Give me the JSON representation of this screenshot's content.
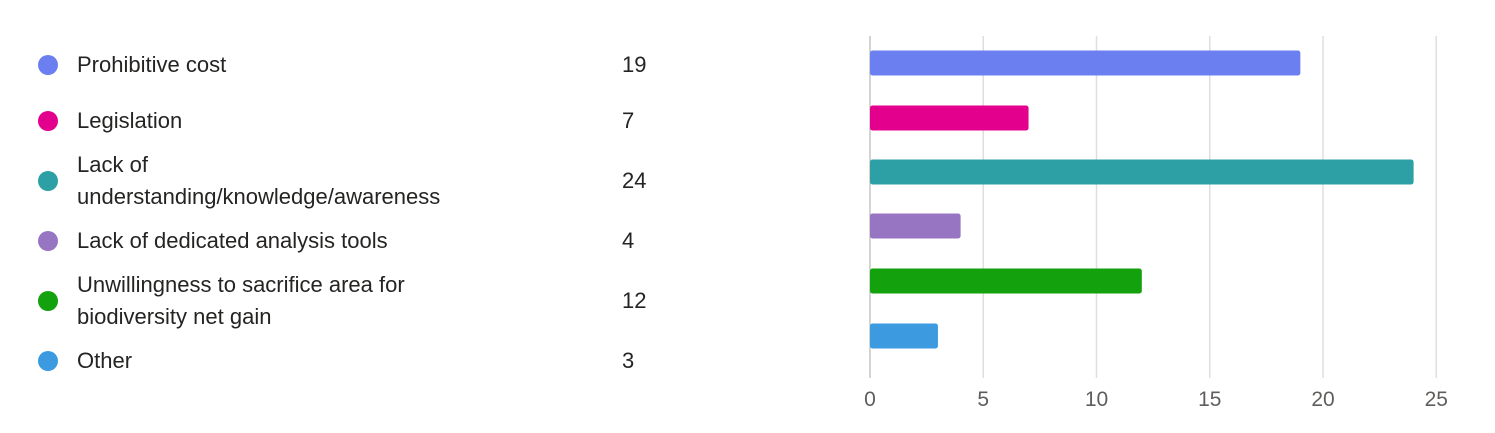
{
  "chart_data": {
    "type": "bar",
    "orientation": "horizontal",
    "categories": [
      "Prohibitive cost",
      "Legislation",
      "Lack of understanding/knowledge/awareness",
      "Lack of dedicated analysis tools",
      "Unwillingness to sacrifice area for biodiversity net gain",
      "Other"
    ],
    "values": [
      19,
      7,
      24,
      4,
      12,
      3
    ],
    "colors": [
      "#6b7ff0",
      "#e3008c",
      "#2ca0a4",
      "#9775c2",
      "#13a10e",
      "#3c9ae0"
    ],
    "xlim": [
      0,
      25
    ],
    "xticks": [
      "0",
      "5",
      "10",
      "15",
      "20",
      "25"
    ],
    "grid": true,
    "legend": "left"
  }
}
